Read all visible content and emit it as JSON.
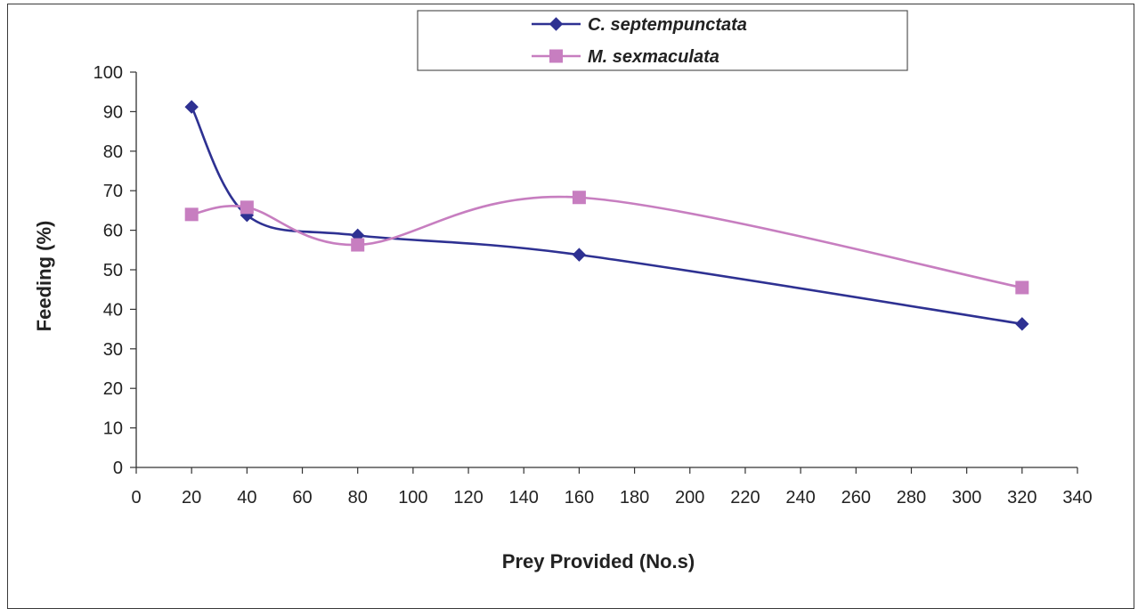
{
  "chart_data": {
    "type": "line",
    "title": "",
    "xlabel": "Prey Provided (No.s)",
    "ylabel": "Feeding (%)",
    "xlim": [
      0,
      340
    ],
    "ylim": [
      0,
      100
    ],
    "xticks": [
      0,
      20,
      40,
      60,
      80,
      100,
      120,
      140,
      160,
      180,
      200,
      220,
      240,
      260,
      280,
      300,
      320,
      340
    ],
    "yticks": [
      0,
      10,
      20,
      30,
      40,
      50,
      60,
      70,
      80,
      90,
      100
    ],
    "smoothed": true,
    "grid": false,
    "legend_position": "top-center",
    "series": [
      {
        "name": "C. septempunctata",
        "color": "#2e3192",
        "marker": "diamond",
        "x": [
          20,
          40,
          80,
          160,
          320
        ],
        "y": [
          91.2,
          63.8,
          58.7,
          53.8,
          36.3
        ]
      },
      {
        "name": "M. sexmaculata",
        "color": "#c77ec0",
        "marker": "square",
        "x": [
          20,
          40,
          80,
          160,
          320
        ],
        "y": [
          64.0,
          65.8,
          56.3,
          68.3,
          45.5
        ]
      }
    ]
  }
}
